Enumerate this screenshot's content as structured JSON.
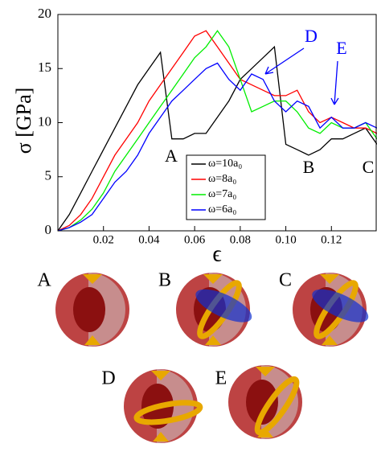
{
  "chart_data": {
    "type": "line",
    "y_label": "σ [GPa]",
    "x_label": "ϵ",
    "x": [
      0,
      0.005,
      0.01,
      0.015,
      0.02,
      0.025,
      0.03,
      0.035,
      0.04,
      0.045,
      0.05,
      0.055,
      0.06,
      0.065,
      0.07,
      0.075,
      0.08,
      0.085,
      0.09,
      0.095,
      0.1,
      0.105,
      0.11,
      0.115,
      0.12,
      0.125,
      0.13,
      0.135,
      0.14
    ],
    "series": [
      {
        "name": "ω=10a₀",
        "color": "#000000",
        "values": [
          0,
          1.5,
          3.5,
          5.5,
          7.5,
          9.5,
          11.5,
          13.5,
          15,
          16.5,
          8.5,
          8.5,
          9,
          9,
          10.5,
          12,
          14,
          15,
          16,
          17,
          8,
          7.5,
          7,
          7.5,
          8.5,
          8.5,
          9,
          9.5,
          8
        ]
      },
      {
        "name": "ω=8a₀",
        "color": "#ff0000",
        "values": [
          0,
          0.5,
          1.5,
          3,
          5,
          7,
          8.5,
          10,
          12,
          13.5,
          15,
          16.5,
          18,
          18.5,
          17,
          15.5,
          14,
          13.5,
          13,
          12.5,
          12.5,
          13,
          11,
          10,
          10.5,
          10,
          9.5,
          9.5,
          9
        ]
      },
      {
        "name": "ω=7a₀",
        "color": "#00ee00",
        "values": [
          0,
          0.3,
          1,
          2,
          3.5,
          5.5,
          7,
          8.5,
          10,
          11.5,
          13,
          14.5,
          16,
          17,
          18.5,
          17,
          14,
          11,
          11.5,
          12,
          12,
          11,
          9.5,
          9,
          10,
          9.5,
          9.5,
          10,
          8.5
        ]
      },
      {
        "name": "ω=6a₀",
        "color": "#0000ff",
        "values": [
          0,
          0.3,
          0.8,
          1.5,
          3,
          4.5,
          5.5,
          7,
          9,
          10.5,
          12,
          13,
          14,
          15,
          15.5,
          14,
          13,
          14.5,
          14,
          12,
          11,
          12,
          11.5,
          9.5,
          10.5,
          9.5,
          9.5,
          10,
          9.5
        ]
      }
    ],
    "xlim": [
      0,
      0.14
    ],
    "ylim": [
      0,
      20
    ],
    "xticks": [
      0.02,
      0.04,
      0.06,
      0.08,
      {
        "value": 0.1,
        "label": "0.10"
      },
      0.12
    ],
    "yticks": [
      0,
      5,
      10,
      15,
      20
    ],
    "annotations": [
      "A",
      "B",
      "C",
      "D",
      "E"
    ]
  },
  "panels": [
    "A",
    "B",
    "C",
    "D",
    "E"
  ]
}
